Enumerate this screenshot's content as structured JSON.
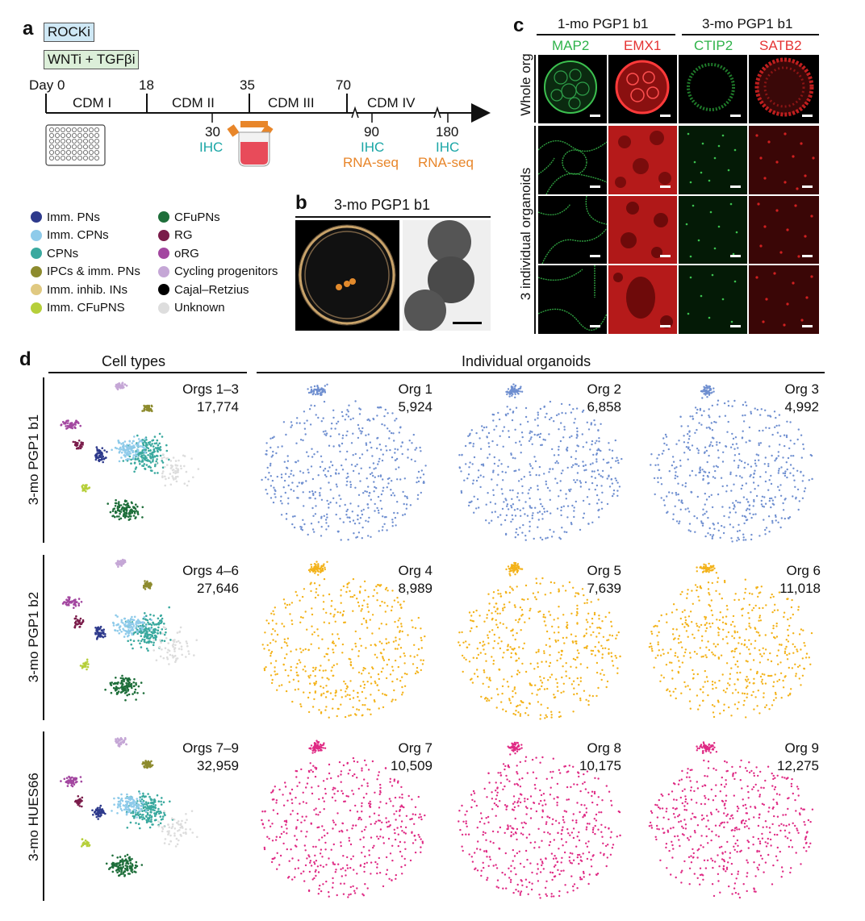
{
  "panel_letters": {
    "a": "a",
    "b": "b",
    "c": "c",
    "d": "d"
  },
  "panel_a": {
    "rocki": "ROCKi",
    "wnti_tgf": "WNTi + TGFβi",
    "days": [
      "Day 0",
      "18",
      "35",
      "70"
    ],
    "stages": [
      "CDM I",
      "CDM II",
      "CDM III",
      "CDM IV"
    ],
    "timepoints": [
      {
        "day": "30",
        "labels": [
          "IHC"
        ]
      },
      {
        "day": "90",
        "labels": [
          "IHC",
          "RNA-seq"
        ]
      },
      {
        "day": "180",
        "labels": [
          "IHC",
          "RNA-seq"
        ]
      }
    ],
    "colors": {
      "ihc": "#1aa6a6",
      "rnaseq": "#e8862a",
      "rocki_fill": "#cfe8f5",
      "wnti_fill": "#dcefd9"
    }
  },
  "legend": {
    "col1": [
      {
        "label": "Imm. PNs",
        "color": "#2e3a8c"
      },
      {
        "label": "Imm. CPNs",
        "color": "#8fcbea"
      },
      {
        "label": "CPNs",
        "color": "#3aa99f"
      },
      {
        "label": "IPCs & imm. PNs",
        "color": "#8d8b2e"
      },
      {
        "label": "Imm. inhib. INs",
        "color": "#e0c981"
      },
      {
        "label": "Imm. CFuPNS",
        "color": "#b6cf3a"
      }
    ],
    "col2": [
      {
        "label": "CFuPNs",
        "color": "#1e6e3a"
      },
      {
        "label": "RG",
        "color": "#7a1c4a"
      },
      {
        "label": "oRG",
        "color": "#a347a0"
      },
      {
        "label": "Cycling progenitors",
        "color": "#c5a7d6"
      },
      {
        "label": "Cajal–Retzius",
        "color": "#000000"
      },
      {
        "label": "Unknown",
        "color": "#dddddd"
      }
    ]
  },
  "panel_b": {
    "title": "3-mo PGP1 b1"
  },
  "panel_c": {
    "group1": "1-mo PGP1 b1",
    "group2": "3-mo PGP1 b1",
    "markers": [
      {
        "name": "MAP2",
        "color": "#2fb34a"
      },
      {
        "name": "EMX1",
        "color": "#e53333"
      },
      {
        "name": "CTIP2",
        "color": "#2fb34a"
      },
      {
        "name": "SATB2",
        "color": "#e53333"
      }
    ],
    "row_label_top": "Whole org",
    "row_label_bottom": "3 individual organoids"
  },
  "panel_d": {
    "header_left": "Cell types",
    "header_right": "Individual organoids",
    "rows": [
      {
        "label": "3-mo PGP1 b1",
        "color": "#6f8fd0",
        "celltypes": {
          "orgs": "Orgs 1–3",
          "count": "17,774"
        },
        "orgs": [
          {
            "name": "Org 1",
            "count": "5,924"
          },
          {
            "name": "Org 2",
            "count": "6,858"
          },
          {
            "name": "Org 3",
            "count": "4,992"
          }
        ]
      },
      {
        "label": "3-mo PGP1 b2",
        "color": "#f3b219",
        "celltypes": {
          "orgs": "Orgs 4–6",
          "count": "27,646"
        },
        "orgs": [
          {
            "name": "Org 4",
            "count": "8,989"
          },
          {
            "name": "Org 5",
            "count": "7,639"
          },
          {
            "name": "Org 6",
            "count": "11,018"
          }
        ]
      },
      {
        "label": "3-mo HUES66",
        "color": "#df2a84",
        "celltypes": {
          "orgs": "Orgs 7–9",
          "count": "32,959"
        },
        "orgs": [
          {
            "name": "Org 7",
            "count": "10,509"
          },
          {
            "name": "Org 8",
            "count": "10,175"
          },
          {
            "name": "Org 9",
            "count": "12,275"
          }
        ]
      }
    ]
  }
}
